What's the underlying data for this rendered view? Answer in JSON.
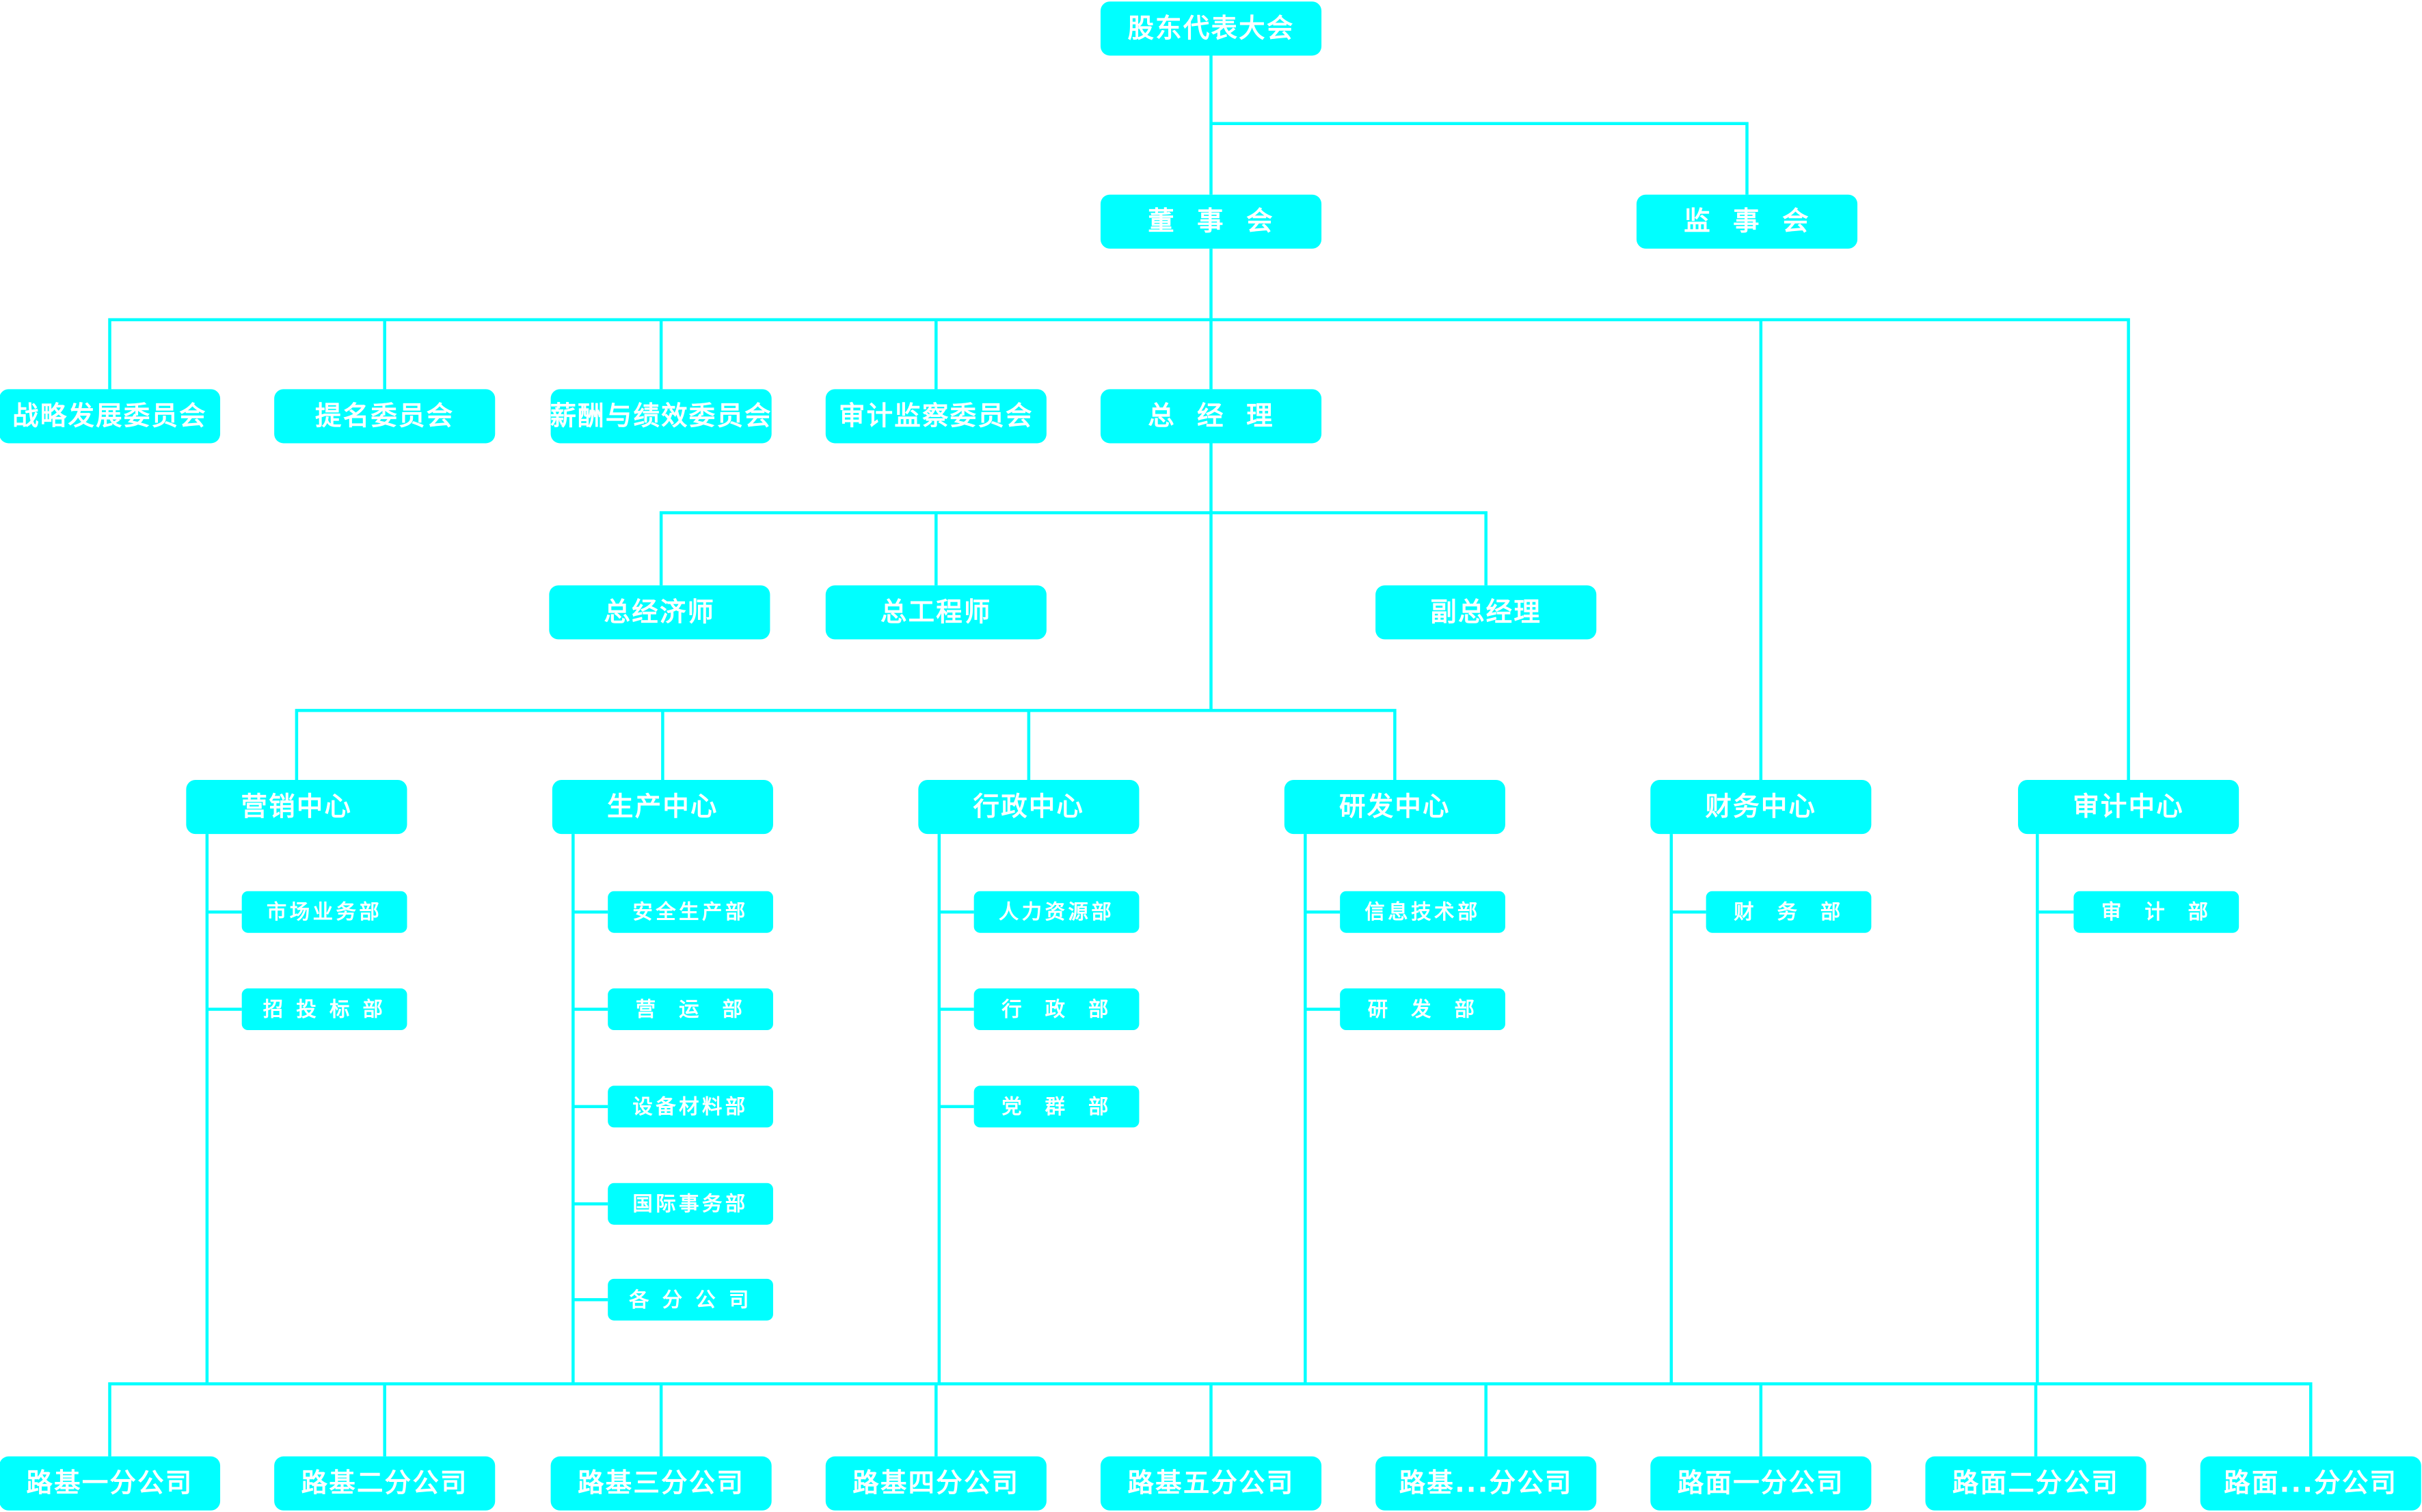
{
  "colors": {
    "box": "#00FFFF",
    "line": "#00FFFF",
    "text": "#FFFFFF"
  },
  "top": "股东代表大会",
  "board": "董  事  会",
  "supervisors": "监  事  会",
  "committees": [
    "战略发展委员会",
    "提名委员会",
    "薪酬与绩效委员会",
    "审计监察委员会"
  ],
  "gm": "总  经  理",
  "executives": [
    "总经济师",
    "总工程师",
    "副总经理"
  ],
  "centers": [
    {
      "label": "营销中心",
      "departments": [
        "市场业务部",
        "招 投 标 部"
      ]
    },
    {
      "label": "生产中心",
      "departments": [
        "安全生产部",
        "营  运  部",
        "设备材料部",
        "国际事务部",
        "各 分 公 司"
      ]
    },
    {
      "label": "行政中心",
      "departments": [
        "人力资源部",
        "行  政  部",
        "党  群  部"
      ]
    },
    {
      "label": "研发中心",
      "departments": [
        "信息技术部",
        "研  发  部"
      ]
    },
    {
      "label": "财务中心",
      "departments": [
        "财  务  部"
      ]
    },
    {
      "label": "审计中心",
      "departments": [
        "审  计  部"
      ]
    }
  ],
  "branches": [
    "路基一分公司",
    "路基二分公司",
    "路基三分公司",
    "路基四分公司",
    "路基五分公司",
    "路基...分公司",
    "路面一分公司",
    "路面二分公司",
    "路面...分公司"
  ]
}
